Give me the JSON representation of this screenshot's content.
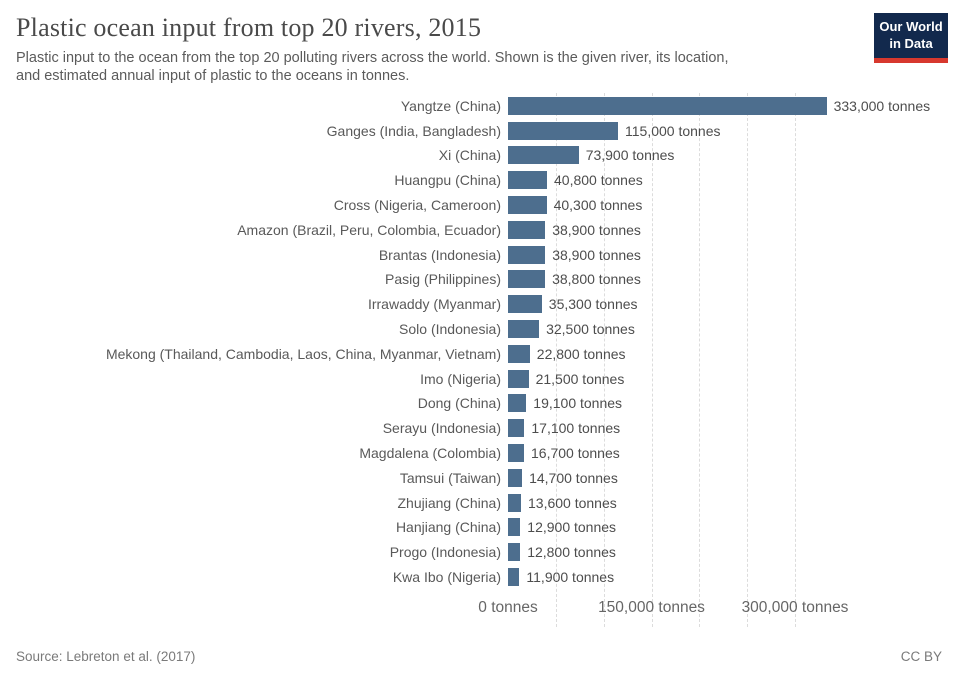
{
  "header": {
    "title": "Plastic ocean input from top 20 rivers, 2015",
    "subtitle_line1": "Plastic input to the ocean from the top 20 polluting rivers across the world. Shown is the given river, its location,",
    "subtitle_line2": "and estimated annual input of plastic to the oceans in tonnes.",
    "logo": {
      "line1": "Our World",
      "line2": "in Data",
      "bg_color": "#12294d",
      "accent_color": "#d7382e"
    }
  },
  "chart_data": {
    "type": "bar",
    "orientation": "horizontal",
    "title": "Plastic ocean input from top 20 rivers, 2015",
    "unit": "tonnes",
    "bar_color": "#4d6e8e",
    "grid": "dashed",
    "xlim": [
      0,
      350000
    ],
    "categories": [
      "Yangtze (China)",
      "Ganges (India, Bangladesh)",
      "Xi (China)",
      "Huangpu (China)",
      "Cross (Nigeria, Cameroon)",
      "Amazon (Brazil, Peru, Colombia, Ecuador)",
      "Brantas (Indonesia)",
      "Pasig (Philippines)",
      "Irrawaddy (Myanmar)",
      "Solo (Indonesia)",
      "Mekong (Thailand, Cambodia, Laos, China, Myanmar, Vietnam)",
      "Imo (Nigeria)",
      "Dong (China)",
      "Serayu (Indonesia)",
      "Magdalena (Colombia)",
      "Tamsui (Taiwan)",
      "Zhujiang (China)",
      "Hanjiang (China)",
      "Progo (Indonesia)",
      "Kwa Ibo (Nigeria)"
    ],
    "values": [
      333000,
      115000,
      73900,
      40800,
      40300,
      38900,
      38900,
      38800,
      35300,
      32500,
      22800,
      21500,
      19100,
      17100,
      16700,
      14700,
      13600,
      12900,
      12800,
      11900
    ],
    "value_labels": [
      "333,000 tonnes",
      "115,000 tonnes",
      "73,900 tonnes",
      "40,800 tonnes",
      "40,300 tonnes",
      "38,900 tonnes",
      "38,900 tonnes",
      "38,800 tonnes",
      "35,300 tonnes",
      "32,500 tonnes",
      "22,800 tonnes",
      "21,500 tonnes",
      "19,100 tonnes",
      "17,100 tonnes",
      "16,700 tonnes",
      "14,700 tonnes",
      "13,600 tonnes",
      "12,900 tonnes",
      "12,800 tonnes",
      "11,900 tonnes"
    ],
    "xticks": [
      {
        "value": 0,
        "label": "0 tonnes"
      },
      {
        "value": 150000,
        "label": "150,000 tonnes"
      },
      {
        "value": 300000,
        "label": "300,000 tonnes"
      }
    ],
    "gridline_values": [
      50000,
      100000,
      150000,
      200000,
      250000,
      300000
    ]
  },
  "footer": {
    "source": "Source: Lebreton et al. (2017)",
    "license": "CC BY"
  }
}
